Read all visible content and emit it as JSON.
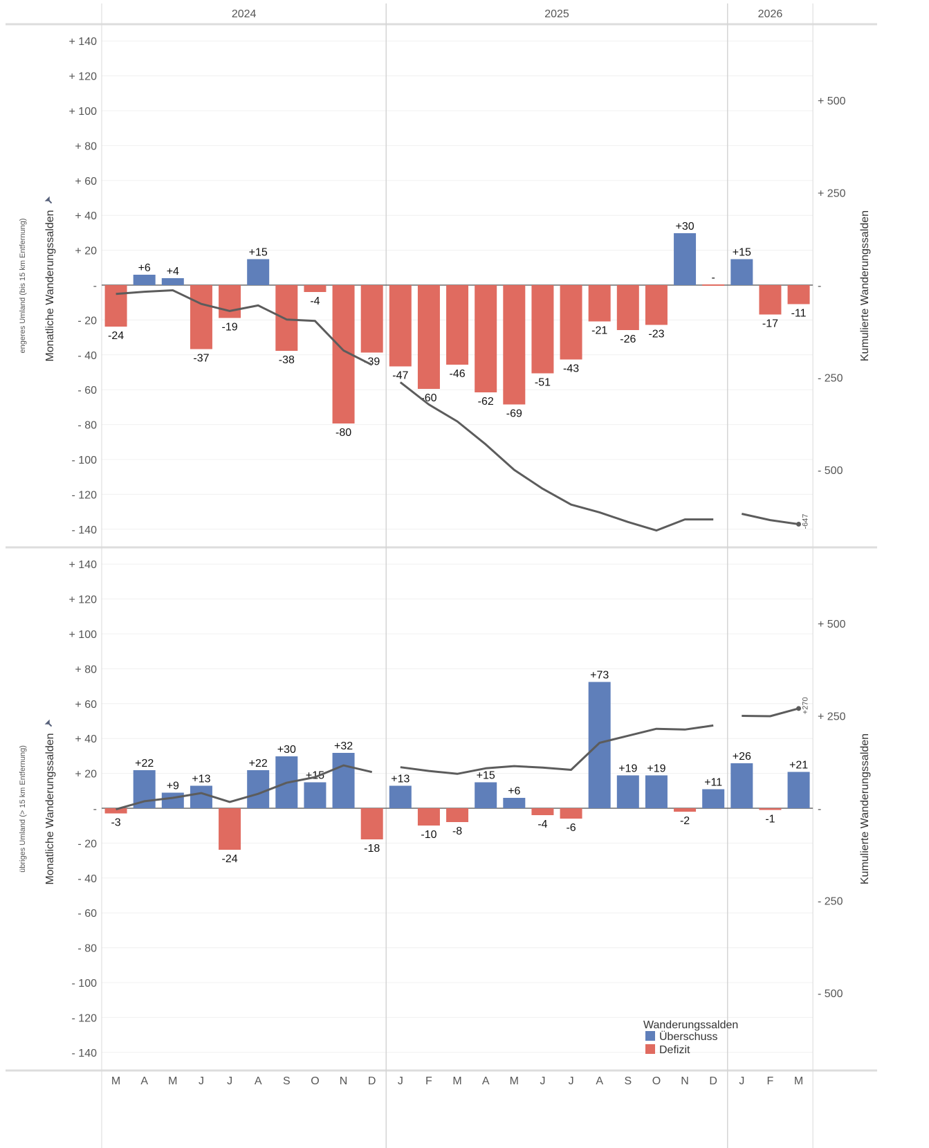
{
  "chart_data": {
    "type": "bar",
    "years": [
      {
        "label": "2024",
        "months": 10
      },
      {
        "label": "2025",
        "months": 12
      },
      {
        "label": "2026",
        "months": 3
      }
    ],
    "categories": [
      "M",
      "A",
      "M",
      "J",
      "J",
      "A",
      "S",
      "O",
      "N",
      "D",
      "J",
      "F",
      "M",
      "A",
      "M",
      "J",
      "J",
      "A",
      "S",
      "O",
      "N",
      "D",
      "J",
      "F",
      "M"
    ],
    "y_left_ticks": [
      "+ 140",
      "+ 120",
      "+ 100",
      "+ 80",
      "+ 60",
      "+ 40",
      "+ 20",
      "-",
      "- 20",
      "- 40",
      "- 60",
      "- 80",
      "- 100",
      "- 120",
      "- 140"
    ],
    "y_left_range": [
      -140,
      140
    ],
    "y_right_ticks": [
      "+ 500",
      "+ 250",
      "-",
      "- 250",
      "- 500"
    ],
    "y_right_range": [
      -700,
      700
    ],
    "ylabel_left": "Monatliche Wanderungssalden",
    "ylabel_right": "Kumulierte Wanderungssalden",
    "grid": true,
    "panels": [
      {
        "row_label": "engeres Umland (bis 15 km Entfernung)",
        "values": [
          -24,
          6,
          4,
          -37,
          -19,
          15,
          -38,
          -4,
          -80,
          -39,
          -47,
          -60,
          -46,
          -62,
          -69,
          -51,
          -43,
          -21,
          -26,
          -23,
          30,
          0,
          15,
          -17,
          -11
        ],
        "labels": [
          "-24",
          "+6",
          "+4",
          "-37",
          "-19",
          "+15",
          "-38",
          "-4",
          "-80",
          "-39",
          "-47",
          "-60",
          "-46",
          "-62",
          "-69",
          "-51",
          "-43",
          "-21",
          "-26",
          "-23",
          "+30",
          "-",
          "+15",
          "-17",
          "-11"
        ],
        "cumulative": [
          -24,
          -18,
          -14,
          -51,
          -70,
          -55,
          -93,
          -97,
          -177,
          -216,
          -263,
          -323,
          -369,
          -431,
          -500,
          -551,
          -594,
          -615,
          -641,
          -664,
          -634,
          -634,
          -619,
          -636,
          -647
        ],
        "end_label": "-647"
      },
      {
        "row_label": "übriges Umland (> 15 km Entfernung)",
        "values": [
          -3,
          22,
          9,
          13,
          -24,
          22,
          30,
          15,
          32,
          -18,
          13,
          -10,
          -8,
          15,
          6,
          -4,
          -6,
          73,
          19,
          19,
          -2,
          11,
          26,
          -1,
          21
        ],
        "labels": [
          "-3",
          "+22",
          "+9",
          "+13",
          "-24",
          "+22",
          "+30",
          "+15",
          "+32",
          "-18",
          "+13",
          "-10",
          "-8",
          "+15",
          "+6",
          "-4",
          "-6",
          "+73",
          "+19",
          "+19",
          "-2",
          "+11",
          "+26",
          "-1",
          "+21"
        ],
        "cumulative": [
          -3,
          19,
          28,
          41,
          17,
          39,
          69,
          84,
          116,
          98,
          111,
          101,
          93,
          108,
          114,
          110,
          104,
          177,
          196,
          215,
          213,
          224,
          250,
          249,
          270
        ],
        "end_label": "+270"
      }
    ],
    "legend": {
      "title": "Wanderungssalden",
      "placement": "bottom-right",
      "items": [
        {
          "label": "Überschuss",
          "color": "#5f7fba"
        },
        {
          "label": "Defizit",
          "color": "#e06b60"
        }
      ]
    },
    "colors": {
      "surplus": "#5f7fba",
      "deficit": "#e06b60",
      "line": "#5c5c5c"
    }
  }
}
